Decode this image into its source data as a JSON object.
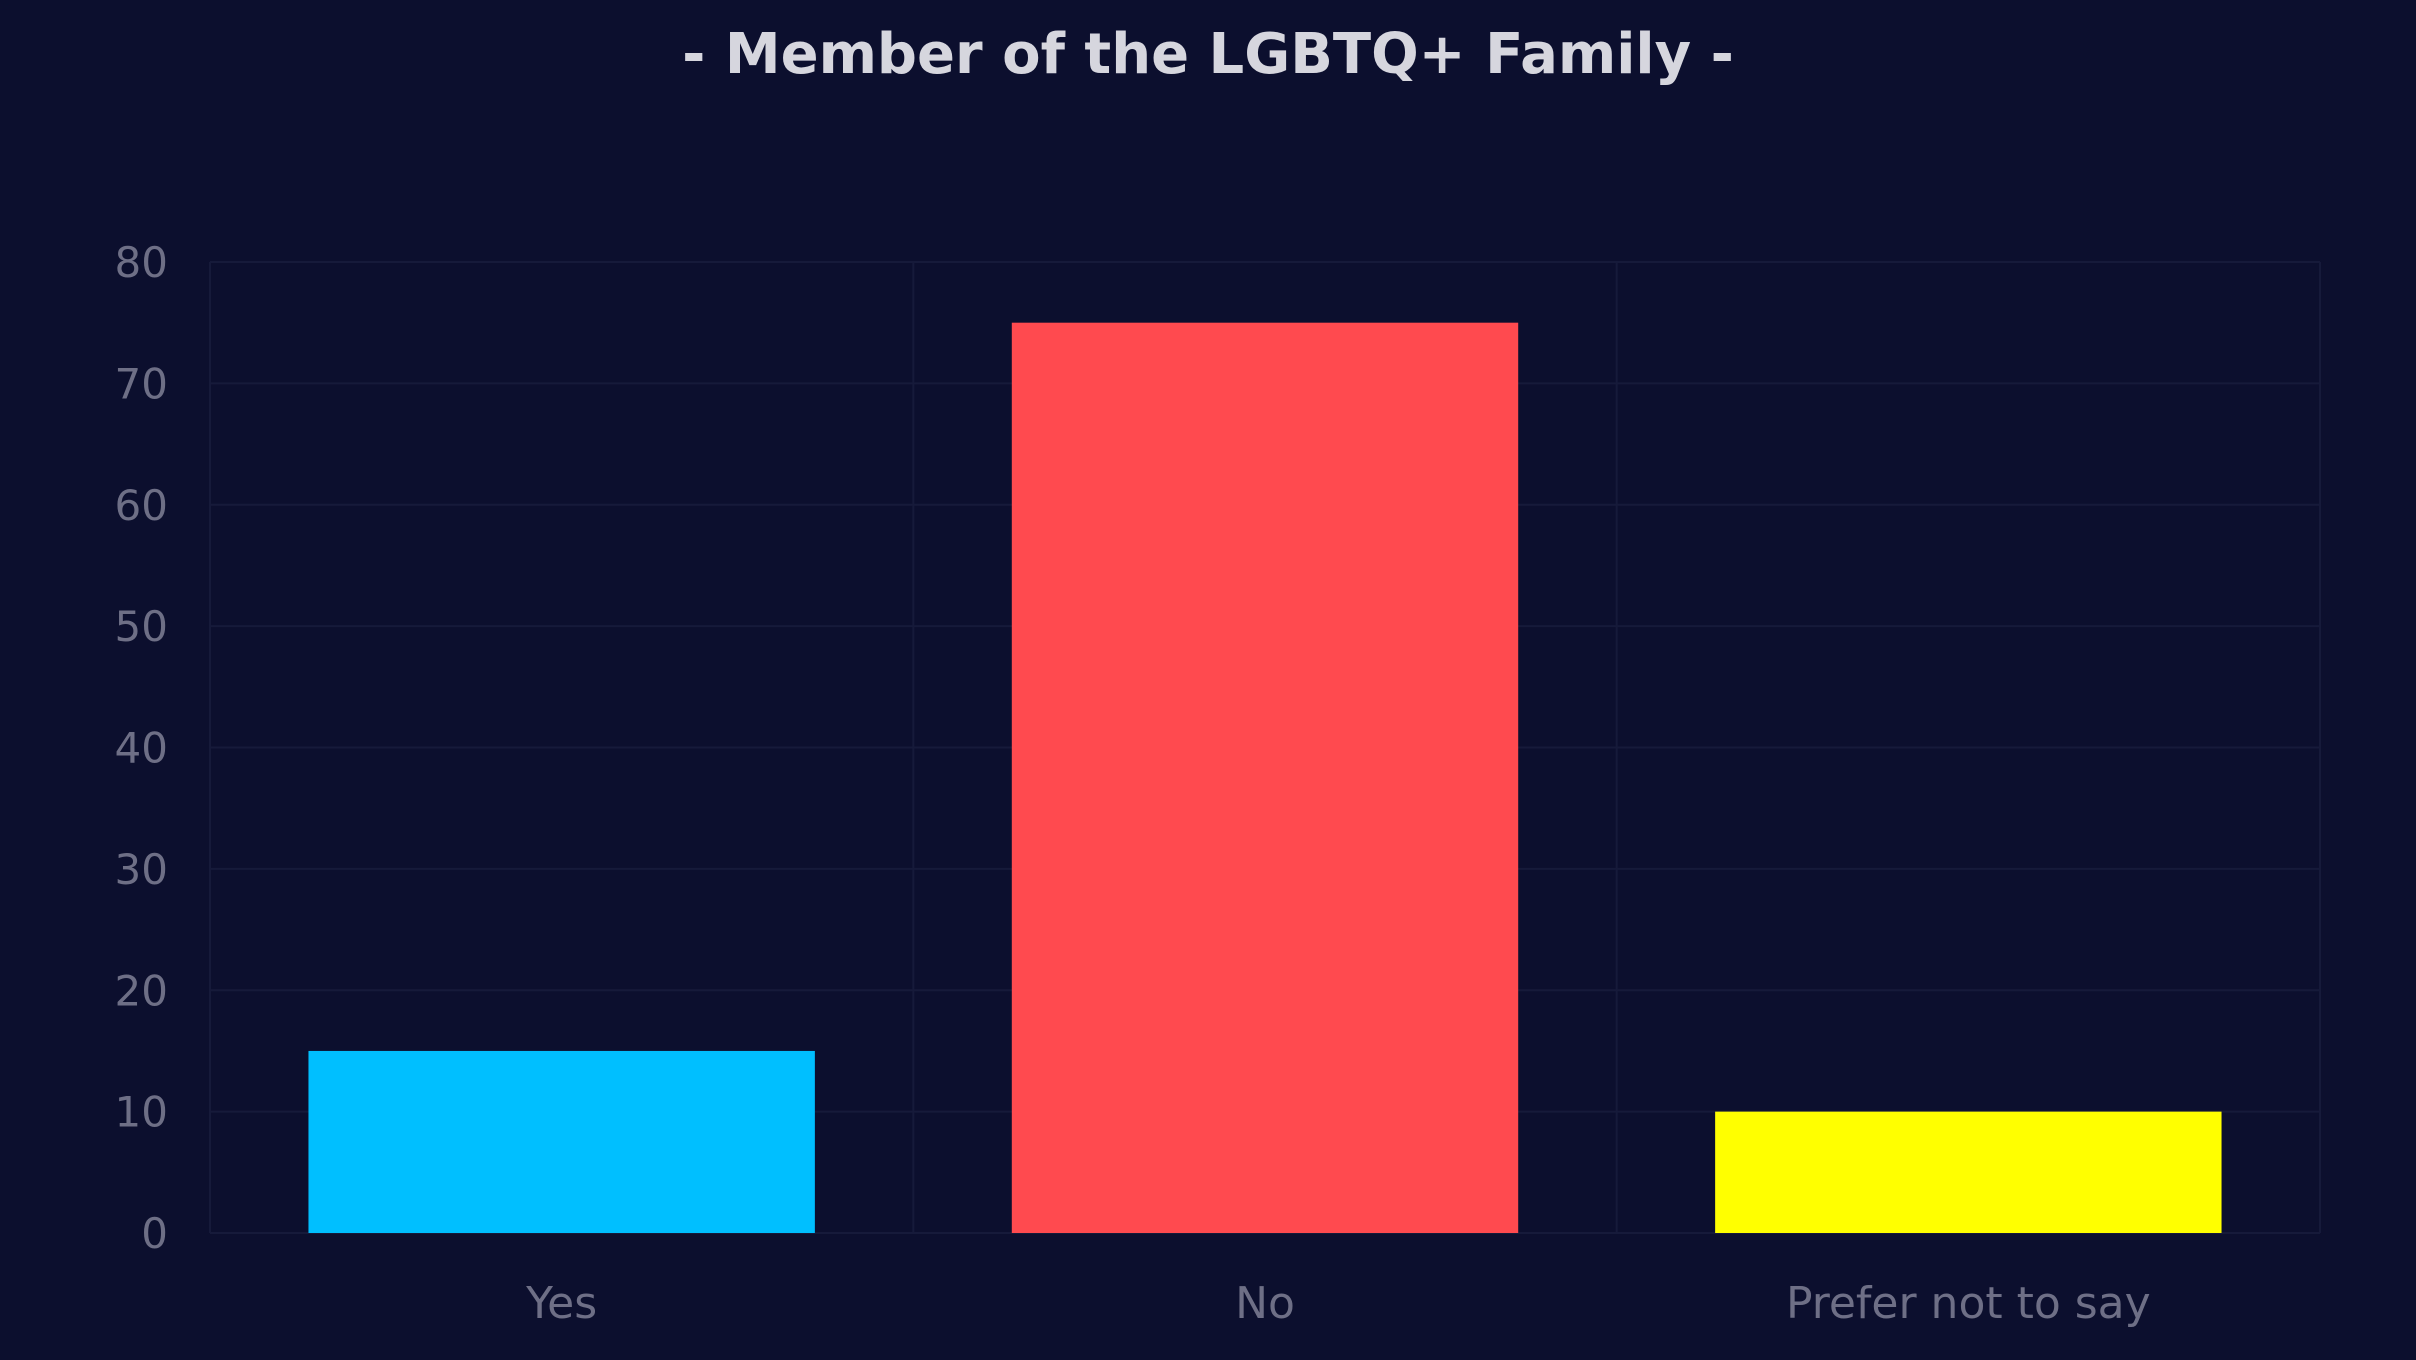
{
  "chart_data": {
    "type": "bar",
    "title": "- Member of the LGBTQ+ Family -",
    "categories": [
      "Yes",
      "No",
      "Prefer not to say"
    ],
    "values": [
      15,
      75,
      10
    ],
    "colors": [
      "#00bfff",
      "#ff4a4f",
      "#ffff00"
    ],
    "xlabel": "",
    "ylabel": "",
    "ylim": [
      0,
      80
    ],
    "yticks": [
      "0",
      "10",
      "20",
      "30",
      "40",
      "50",
      "60",
      "70",
      "80"
    ],
    "grid": true,
    "legend": "none"
  },
  "colors": {
    "background": "#0c0f2e",
    "title": "#d6d6de",
    "tick_text": "#6e6f86",
    "grid": "#161a3a"
  }
}
